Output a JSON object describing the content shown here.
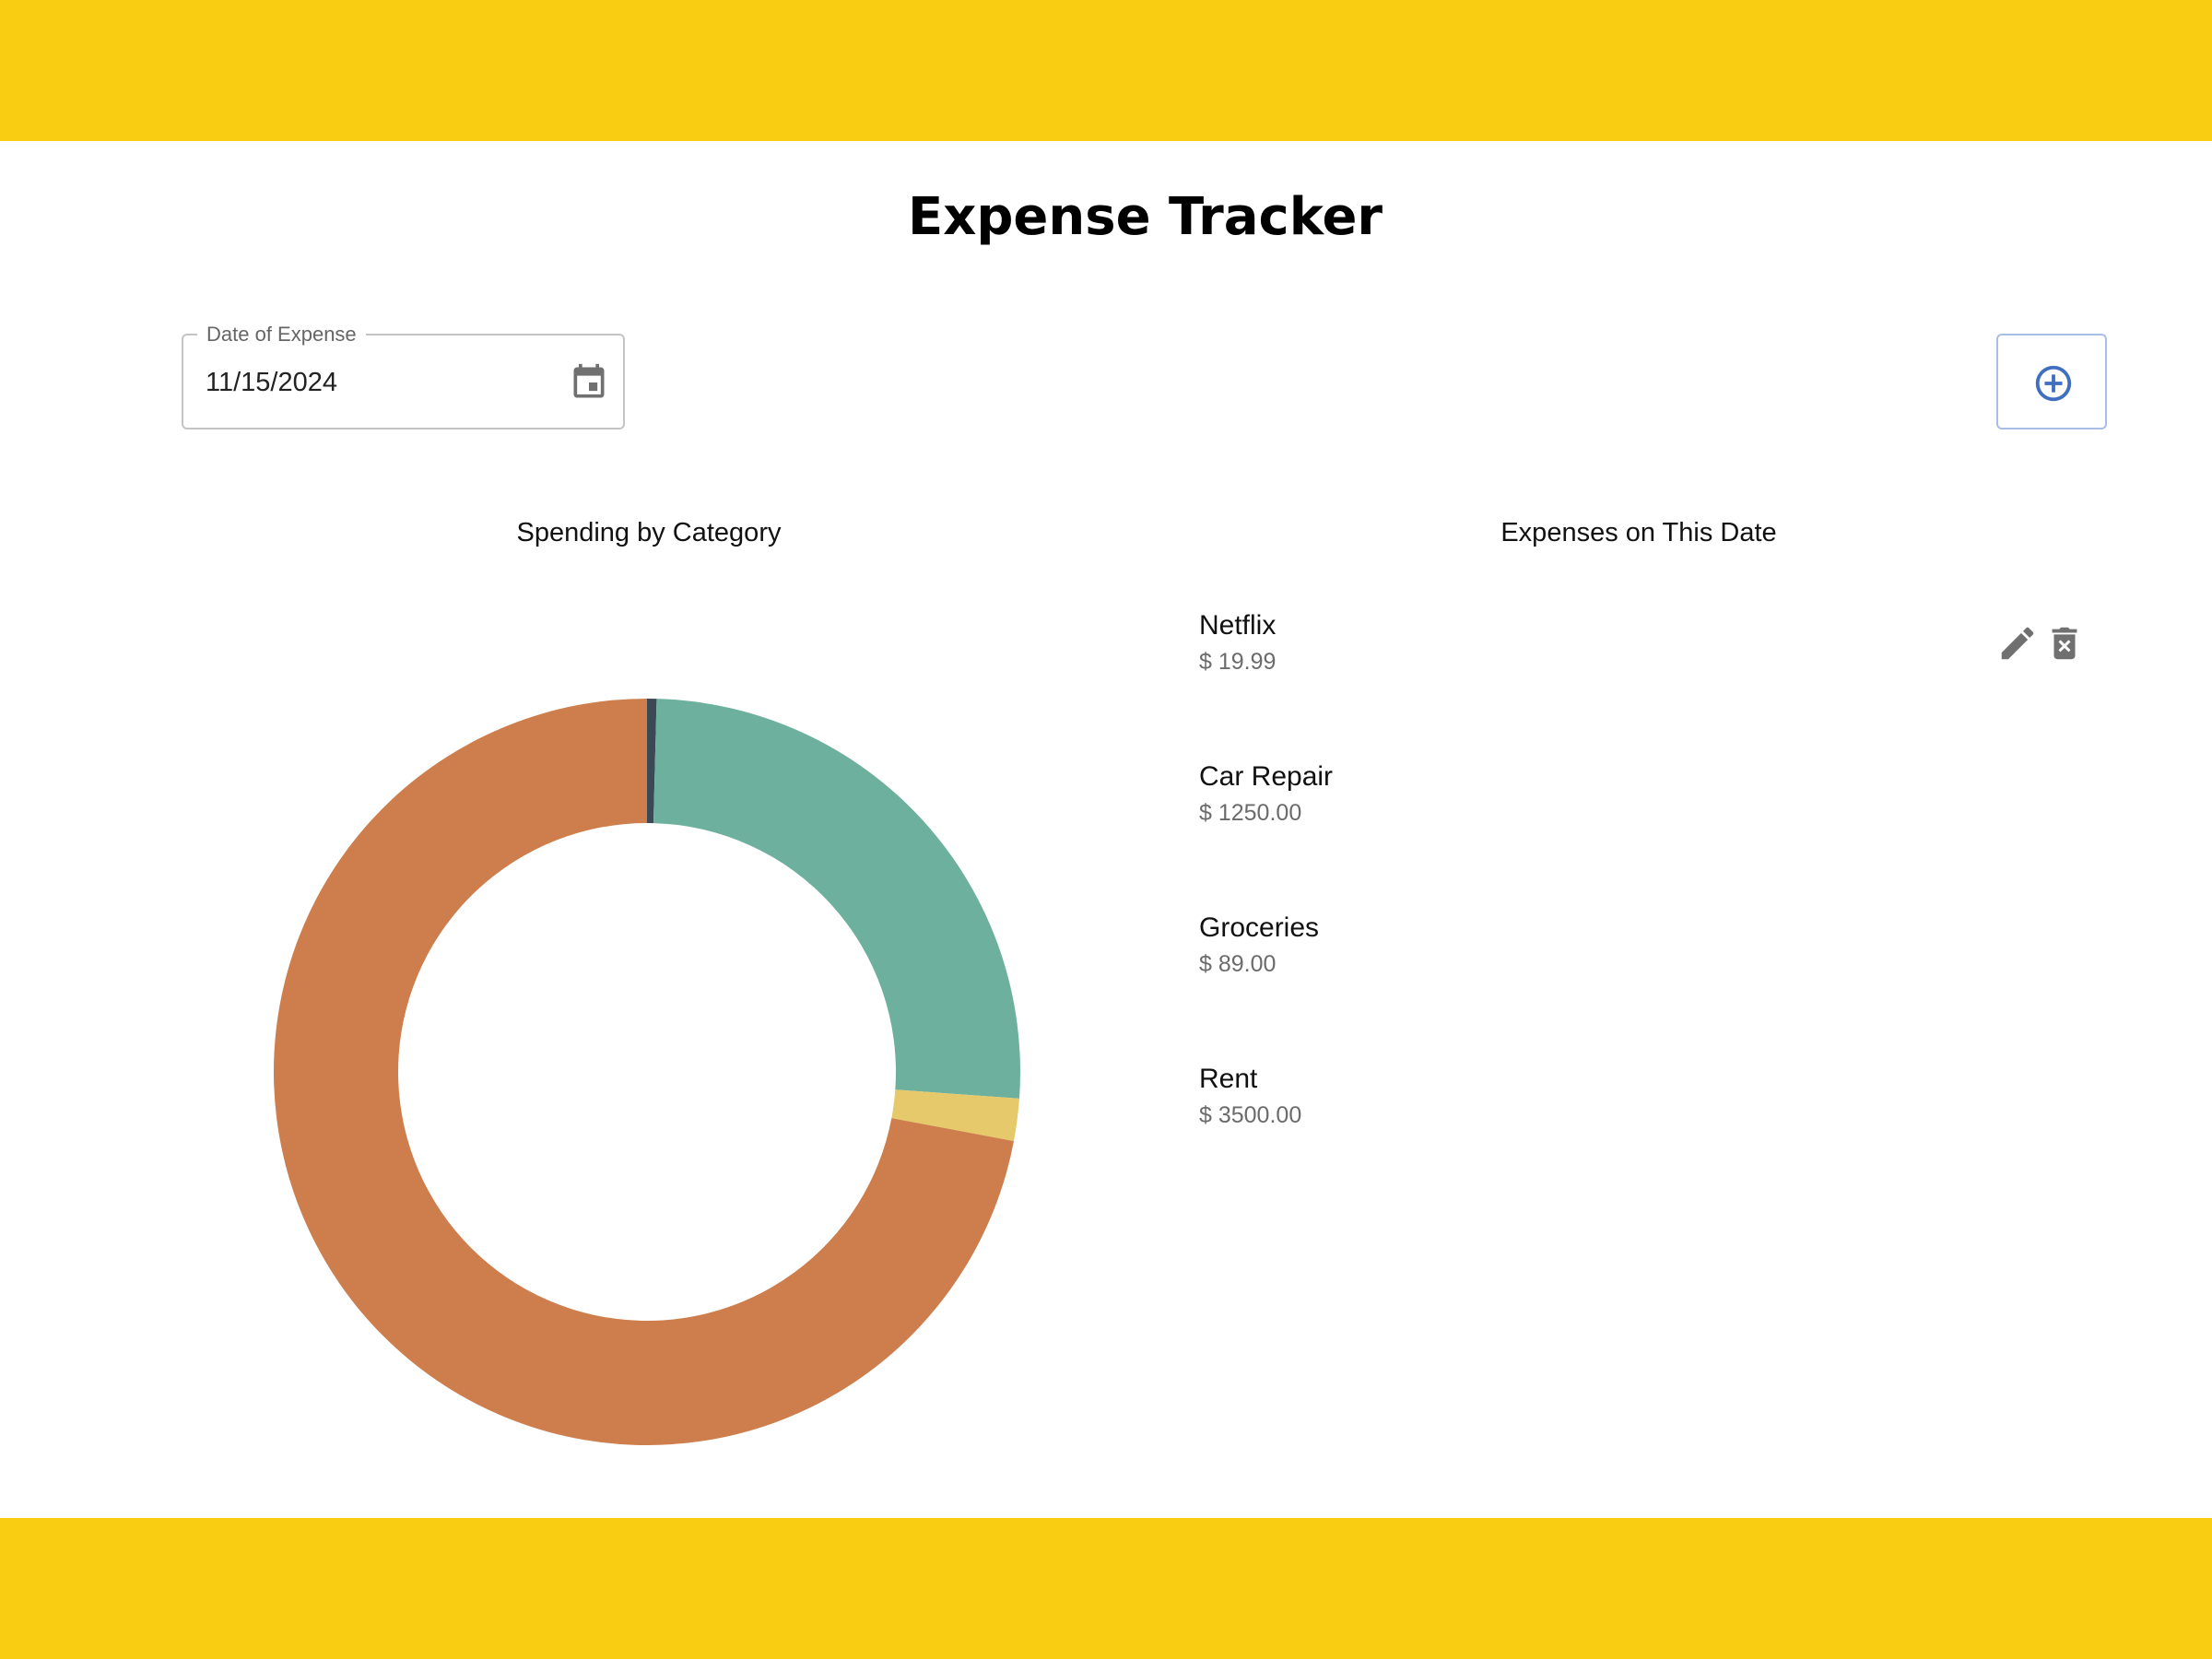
{
  "app": {
    "title": "Expense Tracker"
  },
  "date_picker": {
    "label": "Date of Expense",
    "value": "11/15/2024",
    "icon": "calendar-icon"
  },
  "add_button": {
    "icon": "add-circle-icon",
    "color": "#3f6fbf"
  },
  "chart_section": {
    "heading": "Spending by Category"
  },
  "list_section": {
    "heading": "Expenses on This Date",
    "items": [
      {
        "name": "Netflix",
        "amount": "$ 19.99"
      },
      {
        "name": "Car Repair",
        "amount": "$ 1250.00"
      },
      {
        "name": "Groceries",
        "amount": "$ 89.00"
      },
      {
        "name": "Rent",
        "amount": "$ 3500.00"
      }
    ],
    "actions": {
      "edit_icon": "pencil-icon",
      "delete_icon": "trash-icon"
    }
  },
  "chart_data": {
    "type": "pie",
    "donut": true,
    "title": "",
    "categories": [
      "Netflix",
      "Car Repair",
      "Groceries",
      "Rent"
    ],
    "values": [
      19.99,
      1250.0,
      89.0,
      3500.0
    ],
    "colors": [
      "#3b4856",
      "#6db09e",
      "#e5c96a",
      "#ce7e4c"
    ],
    "start_angle_deg": 0,
    "direction": "clockwise"
  },
  "theme": {
    "band_color": "#f9ce12",
    "background": "#ffffff"
  }
}
